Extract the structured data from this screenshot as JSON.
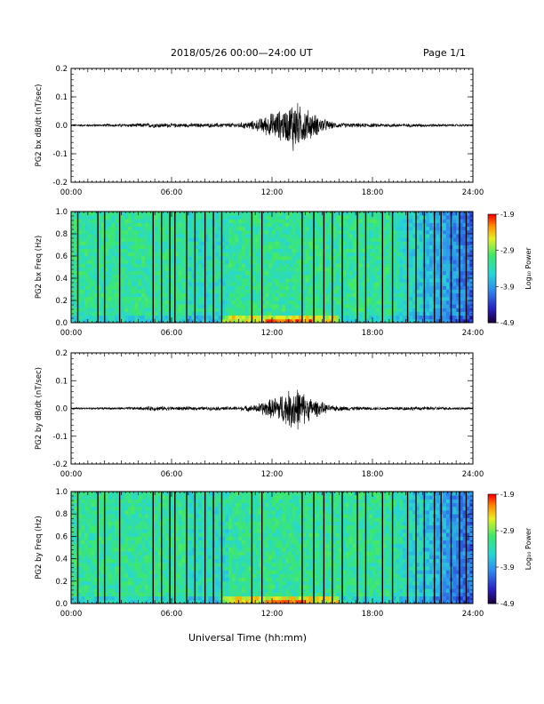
{
  "header": {
    "title": "2018/05/26  00:00—24:00 UT",
    "page": "Page 1/1"
  },
  "xlabel": "Universal Time (hh:mm)",
  "chart_data": [
    {
      "type": "line",
      "ylabel": "PG2 bx dB/dt (nT/sec)",
      "xlim": [
        0,
        24
      ],
      "ylim": [
        -0.2,
        0.2
      ],
      "xticks": [
        "00:00",
        "06:00",
        "12:00",
        "18:00",
        "24:00"
      ],
      "yticks": [
        "-0.2",
        "-0.1",
        "0.0",
        "0.1",
        "0.2"
      ],
      "series": [
        {
          "x": [
            0,
            2,
            4,
            5,
            6,
            8,
            10,
            11,
            11.5,
            12,
            12.5,
            13,
            13.3,
            13.6,
            14,
            14.4,
            15,
            15.5,
            16,
            17,
            18,
            20,
            22,
            24
          ],
          "amplitude": [
            0.004,
            0.005,
            0.008,
            0.01,
            0.008,
            0.008,
            0.01,
            0.02,
            0.035,
            0.05,
            0.06,
            0.07,
            0.12,
            0.08,
            0.07,
            0.05,
            0.03,
            0.015,
            0.01,
            0.008,
            0.008,
            0.007,
            0.006,
            0.004
          ]
        }
      ]
    },
    {
      "type": "heatmap",
      "ylabel": "PG2 bx Freq (Hz)",
      "xlim": [
        0,
        24
      ],
      "ylim": [
        0.0,
        1.0
      ],
      "xticks": [
        "00:00",
        "06:00",
        "12:00",
        "18:00",
        "24:00"
      ],
      "yticks": [
        "0.0",
        "0.2",
        "0.4",
        "0.6",
        "0.8",
        "1.0"
      ],
      "colorbar": {
        "label": "Log₁₀ Power",
        "range": [
          -4.9,
          -1.9
        ],
        "ticks": [
          "-1.9",
          "-2.9",
          "-3.9",
          "-4.9"
        ]
      },
      "gap_lines_hours": [
        0.4,
        1.6,
        2.0,
        2.9,
        4.9,
        5.4,
        5.9,
        6.2,
        6.9,
        7.4,
        8.0,
        8.5,
        9.0,
        10.8,
        11.4,
        13.8,
        14.5,
        15.1,
        15.6,
        16.2,
        17.1,
        17.6,
        18.6,
        19.2,
        20.1,
        20.6,
        21.1,
        21.7,
        22.1,
        22.7,
        23.2,
        23.6
      ]
    },
    {
      "type": "line",
      "ylabel": "PG2 by dB/dt (nT/sec)",
      "xlim": [
        0,
        24
      ],
      "ylim": [
        -0.2,
        0.2
      ],
      "xticks": [
        "00:00",
        "06:00",
        "12:00",
        "18:00",
        "24:00"
      ],
      "yticks": [
        "-0.2",
        "-0.1",
        "0.0",
        "0.1",
        "0.2"
      ],
      "series": [
        {
          "x": [
            0,
            2,
            4,
            5,
            6,
            8,
            10,
            11,
            11.5,
            12,
            12.5,
            13,
            13.3,
            13.6,
            14,
            14.4,
            15,
            15.5,
            16,
            17,
            18,
            20,
            22,
            24
          ],
          "amplitude": [
            0.004,
            0.004,
            0.006,
            0.01,
            0.008,
            0.007,
            0.008,
            0.015,
            0.03,
            0.04,
            0.06,
            0.07,
            0.1,
            0.08,
            0.06,
            0.04,
            0.025,
            0.012,
            0.01,
            0.008,
            0.006,
            0.008,
            0.007,
            0.004
          ]
        }
      ]
    },
    {
      "type": "heatmap",
      "ylabel": "PG2 by Freq (Hz)",
      "xlim": [
        0,
        24
      ],
      "ylim": [
        0.0,
        1.0
      ],
      "xticks": [
        "00:00",
        "06:00",
        "12:00",
        "18:00",
        "24:00"
      ],
      "yticks": [
        "0.0",
        "0.2",
        "0.4",
        "0.6",
        "0.8",
        "1.0"
      ],
      "colorbar": {
        "label": "Log₁₀ Power",
        "range": [
          -4.9,
          -1.9
        ],
        "ticks": [
          "-1.9",
          "-2.9",
          "-3.9",
          "-4.9"
        ]
      },
      "gap_lines_hours": [
        0.4,
        1.6,
        2.0,
        2.9,
        4.9,
        5.4,
        5.9,
        6.2,
        6.9,
        7.4,
        8.0,
        8.5,
        9.0,
        10.8,
        11.4,
        13.8,
        14.5,
        15.1,
        15.6,
        16.2,
        17.1,
        17.6,
        18.6,
        19.2,
        20.1,
        20.6,
        21.1,
        21.7,
        22.1,
        22.7,
        23.2,
        23.6
      ]
    }
  ]
}
